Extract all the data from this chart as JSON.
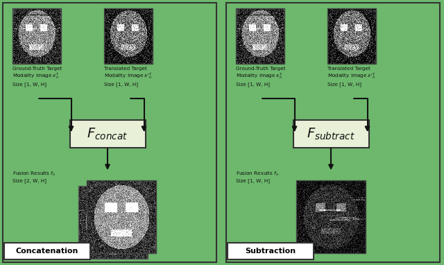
{
  "background_color": "#6db86d",
  "panel_background": "#6db86d",
  "box_fill": "#e8f0e0",
  "box_edge": "#222222",
  "arrow_color": "#111111",
  "label_color": "#111111",
  "white_box_fill": "#f5f5e8",
  "left_panel": {
    "title": "Concatenation",
    "fusion_box_label": "$F_{concat}$",
    "img1_label": "Ground-Truth Target\nModality Image $x_n^T$\nSize [1, W, H]",
    "img2_label": "Translated Target\nModality Image $x'^T_n$\nSize [1, W, H]",
    "fusion_label": "Fusion Results $f_n$\nSize [2, W, H]"
  },
  "right_panel": {
    "title": "Subtraction",
    "fusion_box_label": "$F_{subtract}$",
    "img1_label": "Ground-Truth Target\nModality Image $x_n^T$\nSize [1, W, H]",
    "img2_label": "Translated Target\nModality Image $x'^T_n$\nSize [1, W, H]",
    "fusion_label": "Fusion Results $f_n$\nSize [1, W, H]"
  },
  "figsize": [
    6.4,
    3.82
  ],
  "dpi": 100
}
